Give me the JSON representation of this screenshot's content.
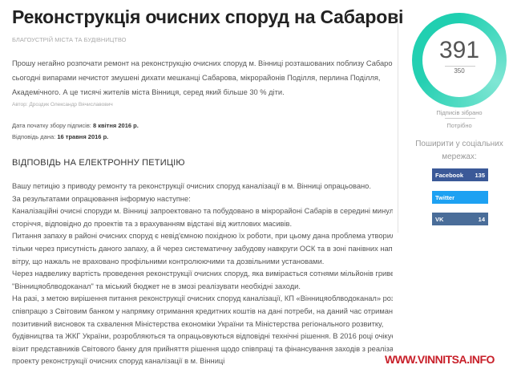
{
  "title": "Реконструкція очисних споруд на Сабарові",
  "category": "Благоустрій міста та будівництво",
  "intro_lines": [
    "Прошу негайно розпочати ремонт на реконструкцію очисних споруд м. Вінниці розташованих поблизу Сабарова. На",
    "сьогодні випарами нечистот змушені дихати мешканці Сабарова, мікрорайонів Поділля, перлина Поділля,",
    "Академічного. А це тисячі жителів міста Вінниця, серед який більше 30 % діти."
  ],
  "author": "Автор: Дроздик Олександр Вячиславович",
  "start_label": "Дата початку збору підписів:",
  "start_value": "8 квітня 2016 р.",
  "answer_label": "Відповідь дана:",
  "answer_value": "16 травня 2016 р.",
  "response_heading": "ВІДПОВІДЬ НА ЕЛЕКТРОННУ ПЕТИЦІЮ",
  "response_lines": [
    "Вашу петицію з приводу ремонту та реконструкції очисних споруд каналізації в м. Вінниці опрацьовано.",
    "За результатами опрацювання інформую наступне:",
    "Каналізаційні очисні споруди м. Вінниці запроектовано та побудовано в мікрорайоні Сабарів в середині минулого",
    "сторіччя, відповідно до проектів та з врахуванням відстані від житлових масивів.",
    "Питання запаху в районі очисних споруд є невід'ємною похідною їх роботи, при цьому дана проблема утворилась не",
    "тільки через присутність даного запаху, а й через систематичну забудову навкруги ОСК та в зоні панівних напрямків",
    "вітру, що нажаль не враховано профільними контролюючими та дозвільними установами.",
    "Через надвелику вартість проведення реконструкції очисних споруд, яка вимірається сотнями мільйонів гривень, КП",
    "\"Вінницяоблводоканал\" та міський бюджет не в змозі реалізувати необхідні заходи.",
    "На разі, з метою вирішення питання реконструкції очисних споруд каналізації, КП «Вінницяоблводоканал» розпочато",
    "співпрацю з Світовим банком у напрямку отримання кредитних коштів на дані потреби, на даний час отримано",
    "позитивний висновок та схвалення Міністерства економіки України та Міністерства регіонального розвитку,",
    "будівництва та ЖКГ України, розробляються та опрацьовуються відповідні технічні рішення. В 2016 році очікується",
    "візит представників Світового банку для прийняття рішення щодо співпраці та фінансування заходів з реалізації",
    "проекту реконструкції очисних споруд каналізації в м. Вінниці"
  ],
  "signatures": {
    "collected": "391",
    "needed": "350",
    "collected_label": "Підписів зібрано",
    "needed_label": "Потрібно",
    "progress_percent": 100
  },
  "share": {
    "label_line1": "Поширити у соціальних",
    "label_line2": "мережах:",
    "buttons": [
      {
        "label": "Facebook",
        "count": "135",
        "color": "#3b5998"
      },
      {
        "label": "Twitter",
        "count": "",
        "color": "#1da1f2"
      },
      {
        "label": "VK",
        "count": "14",
        "color": "#4a6d99"
      }
    ]
  },
  "watermark": "WWW.VINNITSA.INFO"
}
